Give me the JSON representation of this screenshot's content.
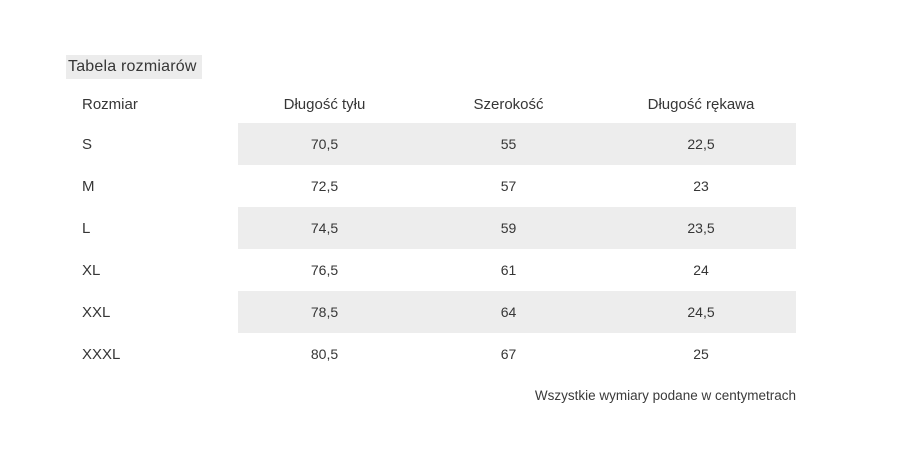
{
  "title": "Tabela rozmiarów",
  "table": {
    "columns": [
      "Rozmiar",
      "Długość tyłu",
      "Szerokość",
      "Długość rękawa"
    ],
    "rows": [
      [
        "S",
        "70,5",
        "55",
        "22,5"
      ],
      [
        "M",
        "72,5",
        "57",
        "23"
      ],
      [
        "L",
        "74,5",
        "59",
        "23,5"
      ],
      [
        "XL",
        "76,5",
        "61",
        "24"
      ],
      [
        "XXL",
        "78,5",
        "64",
        "24,5"
      ],
      [
        "XXXL",
        "80,5",
        "67",
        "25"
      ]
    ]
  },
  "footer_note": "Wszystkie wymiary podane w centymetrach",
  "colors": {
    "stripe": "#ededed",
    "title_highlight": "#ececec",
    "text": "#363636"
  }
}
